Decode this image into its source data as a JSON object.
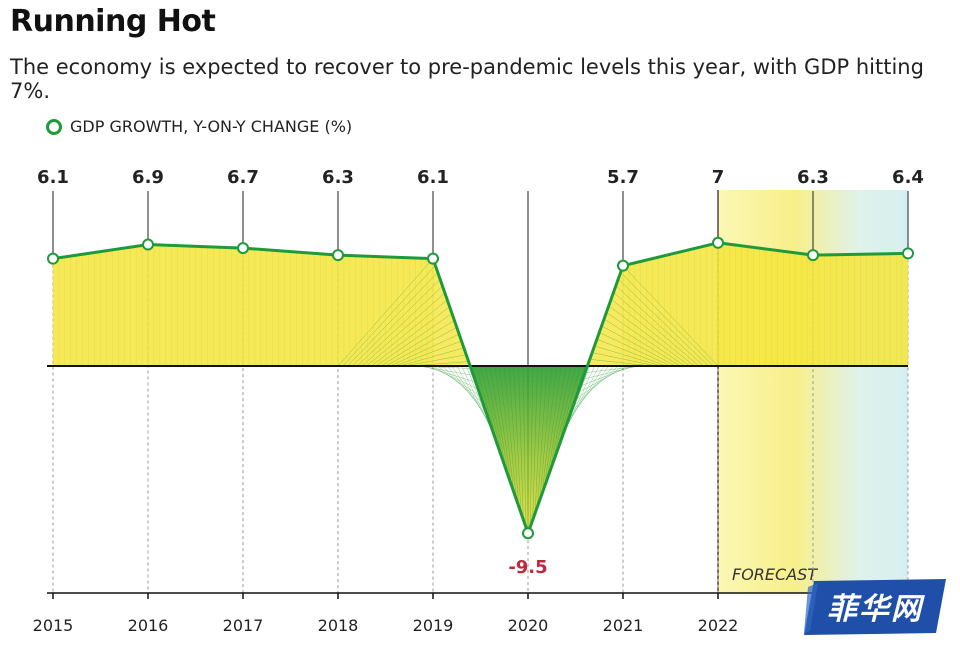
{
  "title": "Running Hot",
  "subtitle": "The economy is expected to recover to pre-pandemic levels this year, with GDP hitting 7%.",
  "legend": {
    "label": "GDP GROWTH, Y-ON-Y CHANGE (%)",
    "color": "#1f9a3a"
  },
  "forecast": {
    "label": "FORECAST",
    "start_year": "2022"
  },
  "watermark": {
    "text": "菲华网",
    "color": "#1f4fa8"
  },
  "chart_data": {
    "type": "line",
    "title": "Running Hot",
    "x": [
      "2015",
      "2016",
      "2017",
      "2018",
      "2019",
      "2020",
      "2021",
      "2022",
      "",
      ""
    ],
    "year_ticks": [
      "2015",
      "2016",
      "2017",
      "2018",
      "2019",
      "2020",
      "2021",
      "2022"
    ],
    "series": [
      {
        "name": "GDP GROWTH, Y-ON-Y CHANGE (%)",
        "values": [
          6.1,
          6.9,
          6.7,
          6.3,
          6.1,
          -9.5,
          5.7,
          7,
          6.3,
          6.4
        ],
        "labels": [
          "6.1",
          "6.9",
          "6.7",
          "6.3",
          "6.1",
          "-9.5",
          "5.7",
          "7",
          "6.3",
          "6.4"
        ]
      }
    ],
    "ylim": [
      -10,
      10
    ],
    "colors": {
      "line": "#1f9a3a",
      "fill": "#f5e53a",
      "negative_label": "#c0283c",
      "forecast_band": "#d9f1ef"
    }
  }
}
